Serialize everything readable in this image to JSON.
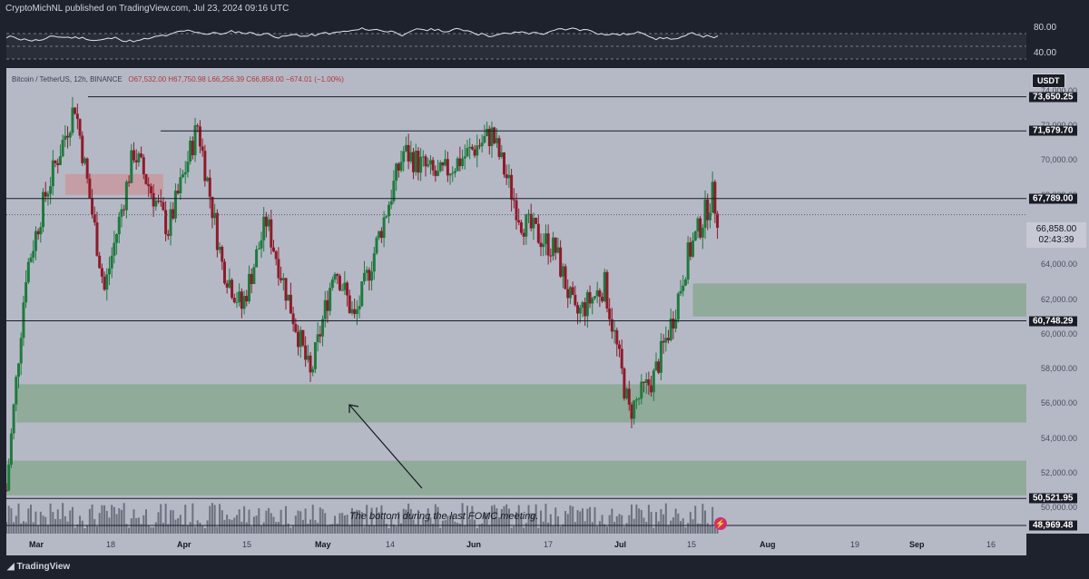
{
  "header": {
    "publisher_text": "CryptoMichNL published on TradingView.com, Jul 23, 2024 09:16 UTC"
  },
  "legend": {
    "symbol": "Bitcoin / TetherUS, 12h, BINANCE",
    "open": "O67,532.00",
    "high": "H67,750.98",
    "low": "L66,256.39",
    "close": "C66,858.00",
    "change": "−674.01 (−1.00%)"
  },
  "rsi": {
    "ticks": [
      "80.00",
      "40.00"
    ]
  },
  "currency_button": "USDT",
  "price_axis": {
    "ticks": [
      "74,000.00",
      "72,000.00",
      "70,000.00",
      "68,000.00",
      "66,000.00",
      "64,000.00",
      "62,000.00",
      "60,000.00",
      "58,000.00",
      "56,000.00",
      "54,000.00",
      "52,000.00",
      "50,000.00"
    ],
    "levels": [
      "73,650.25",
      "71,679.70",
      "67,789.00",
      "60,748.29",
      "50,521.95",
      "48,969.48"
    ],
    "current_price": "66,858.00",
    "countdown": "02:43:39"
  },
  "time_axis": {
    "labels": [
      {
        "text": "Mar",
        "bold": true
      },
      {
        "text": "18",
        "bold": false
      },
      {
        "text": "Apr",
        "bold": true
      },
      {
        "text": "15",
        "bold": false
      },
      {
        "text": "May",
        "bold": true
      },
      {
        "text": "14",
        "bold": false
      },
      {
        "text": "Jun",
        "bold": true
      },
      {
        "text": "17",
        "bold": false
      },
      {
        "text": "Jul",
        "bold": true
      },
      {
        "text": "15",
        "bold": false
      },
      {
        "text": "Aug",
        "bold": true
      },
      {
        "text": "19",
        "bold": false
      },
      {
        "text": "Sep",
        "bold": true
      },
      {
        "text": "16",
        "bold": false
      }
    ]
  },
  "annotation": {
    "text": "The bottom during the last FOMC meeting."
  },
  "footer": {
    "brand": "TradingView"
  },
  "colors": {
    "up": "#1f7a3d",
    "down": "#8e1a2a",
    "zone_green": "#8aa892",
    "zone_red": "#c79aa0",
    "background": "#b5b9c6"
  },
  "chart_data": {
    "type": "candlestick",
    "symbol": "Bitcoin / TetherUS",
    "timeframe": "12h",
    "exchange": "BINANCE",
    "ylim": [
      48500,
      75300
    ],
    "x_range": [
      "2024-02-29",
      "2024-09-24"
    ],
    "horizontal_levels": [
      73650.25,
      71679.7,
      67789.0,
      60748.29,
      50521.95,
      48969.48
    ],
    "zones": [
      {
        "color": "red",
        "from": "2024-03-12",
        "to": "2024-04-01",
        "low": 68000,
        "high": 69200
      },
      {
        "color": "green",
        "from": "2024-07-18",
        "to": "2024-09-24",
        "low": 61000,
        "high": 62900
      },
      {
        "color": "green",
        "from": "2024-03-02",
        "to": "2024-09-24",
        "low": 54900,
        "high": 57100
      },
      {
        "color": "green",
        "from": "2024-02-29",
        "to": "2024-09-24",
        "low": 50700,
        "high": 52700
      }
    ],
    "anchors": [
      {
        "date": "2024-02-29",
        "price": 51000
      },
      {
        "date": "2024-03-04",
        "price": 63500
      },
      {
        "date": "2024-03-08",
        "price": 68000
      },
      {
        "date": "2024-03-14",
        "price": 73200
      },
      {
        "date": "2024-03-20",
        "price": 62500
      },
      {
        "date": "2024-03-26",
        "price": 70500
      },
      {
        "date": "2024-04-02",
        "price": 66000
      },
      {
        "date": "2024-04-08",
        "price": 72000
      },
      {
        "date": "2024-04-13",
        "price": 64000
      },
      {
        "date": "2024-04-17",
        "price": 61500
      },
      {
        "date": "2024-04-22",
        "price": 66500
      },
      {
        "date": "2024-05-01",
        "price": 57500
      },
      {
        "date": "2024-05-06",
        "price": 64000
      },
      {
        "date": "2024-05-10",
        "price": 60800
      },
      {
        "date": "2024-05-20",
        "price": 70500
      },
      {
        "date": "2024-05-27",
        "price": 69000
      },
      {
        "date": "2024-06-07",
        "price": 71500
      },
      {
        "date": "2024-06-13",
        "price": 66500
      },
      {
        "date": "2024-06-20",
        "price": 64800
      },
      {
        "date": "2024-06-24",
        "price": 61000
      },
      {
        "date": "2024-06-30",
        "price": 62800
      },
      {
        "date": "2024-07-05",
        "price": 55500
      },
      {
        "date": "2024-07-10",
        "price": 57500
      },
      {
        "date": "2024-07-14",
        "price": 61000
      },
      {
        "date": "2024-07-17",
        "price": 64500
      },
      {
        "date": "2024-07-22",
        "price": 68000
      },
      {
        "date": "2024-07-23",
        "price": 66858
      }
    ]
  }
}
